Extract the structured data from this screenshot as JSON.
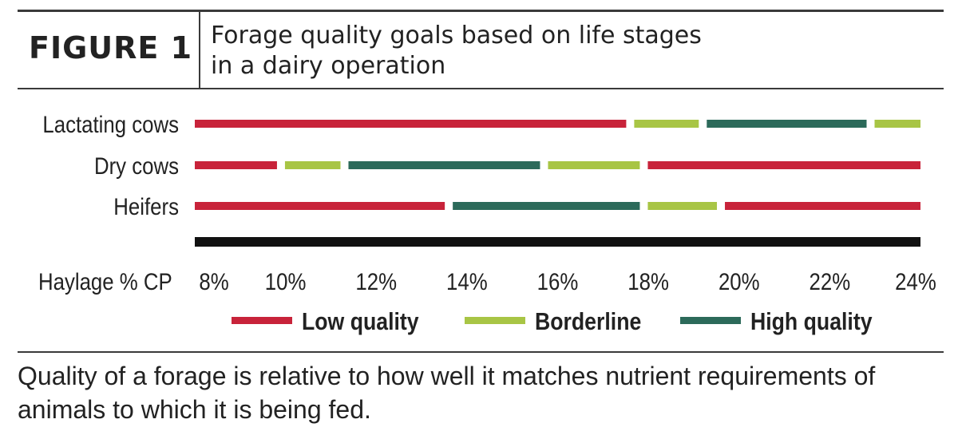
{
  "header": {
    "figure_label": "FIGURE 1",
    "title_lines": [
      "Forage quality goals based on life stages",
      "in a dairy operation"
    ]
  },
  "caption_lines": [
    "Quality of a forage is relative to how well it matches nutrient requirements of",
    "animals to which it is being fed."
  ],
  "chart_data": {
    "type": "bar",
    "x_axis_label": "Haylage  % CP",
    "x_ticks": [
      "8%",
      "10%",
      "12%",
      "14%",
      "16%",
      "18%",
      "20%",
      "22%",
      "24%"
    ],
    "xlim": [
      8,
      24
    ],
    "categories": [
      "Lactating cows",
      "Dry cows",
      "Heifers"
    ],
    "quality_colors": {
      "Low quality": "#c8233a",
      "Borderline": "#a8c545",
      "High quality": "#2c6a5a"
    },
    "series": [
      {
        "name": "Lactating cows",
        "segments": [
          {
            "from": 8,
            "to": 17.6,
            "quality": "Low quality"
          },
          {
            "from": 17.6,
            "to": 19.2,
            "quality": "Borderline"
          },
          {
            "from": 19.2,
            "to": 22.9,
            "quality": "High quality"
          },
          {
            "from": 22.9,
            "to": 24,
            "quality": "Borderline"
          }
        ]
      },
      {
        "name": "Dry cows",
        "segments": [
          {
            "from": 8,
            "to": 9.9,
            "quality": "Low quality"
          },
          {
            "from": 9.9,
            "to": 11.3,
            "quality": "Borderline"
          },
          {
            "from": 11.3,
            "to": 15.7,
            "quality": "High quality"
          },
          {
            "from": 15.7,
            "to": 17.9,
            "quality": "Borderline"
          },
          {
            "from": 17.9,
            "to": 24,
            "quality": "Low quality"
          }
        ]
      },
      {
        "name": "Heifers",
        "segments": [
          {
            "from": 8,
            "to": 13.6,
            "quality": "Low quality"
          },
          {
            "from": 13.6,
            "to": 17.9,
            "quality": "High quality"
          },
          {
            "from": 17.9,
            "to": 19.6,
            "quality": "Borderline"
          },
          {
            "from": 19.6,
            "to": 24,
            "quality": "Low quality"
          }
        ]
      }
    ],
    "legend": [
      "Low quality",
      "Borderline",
      "High quality"
    ],
    "legend_position": "bottom"
  }
}
